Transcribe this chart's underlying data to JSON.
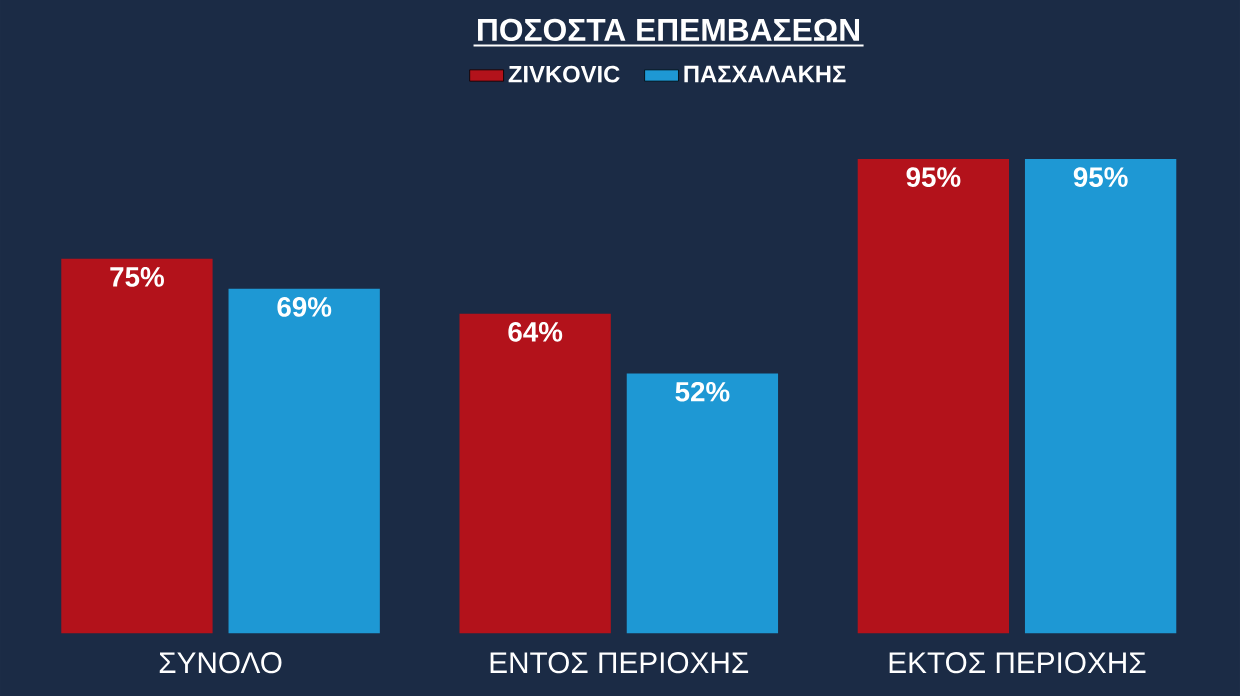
{
  "chart_data": {
    "type": "bar",
    "title": "ΠΟΣΟΣΤΑ ΕΠΕΜΒΑΣΕΩΝ",
    "categories": [
      "ΣΥΝΟΛΟ",
      "ΕΝΤΟΣ ΠΕΡΙΟΧΗΣ",
      "ΕΚΤΟΣ ΠΕΡΙΟΧΗΣ"
    ],
    "series": [
      {
        "name": "ZIVKOVIC",
        "color": "#b3121b",
        "values": [
          75,
          64,
          95
        ],
        "value_labels": [
          "75%",
          "64%",
          "95%"
        ]
      },
      {
        "name": "ΠΑΣΧΑΛΑΚΗΣ",
        "color": "#1e98d4",
        "values": [
          69,
          52,
          95
        ],
        "value_labels": [
          "69%",
          "52%",
          "95%"
        ]
      }
    ],
    "legend": "top"
  }
}
